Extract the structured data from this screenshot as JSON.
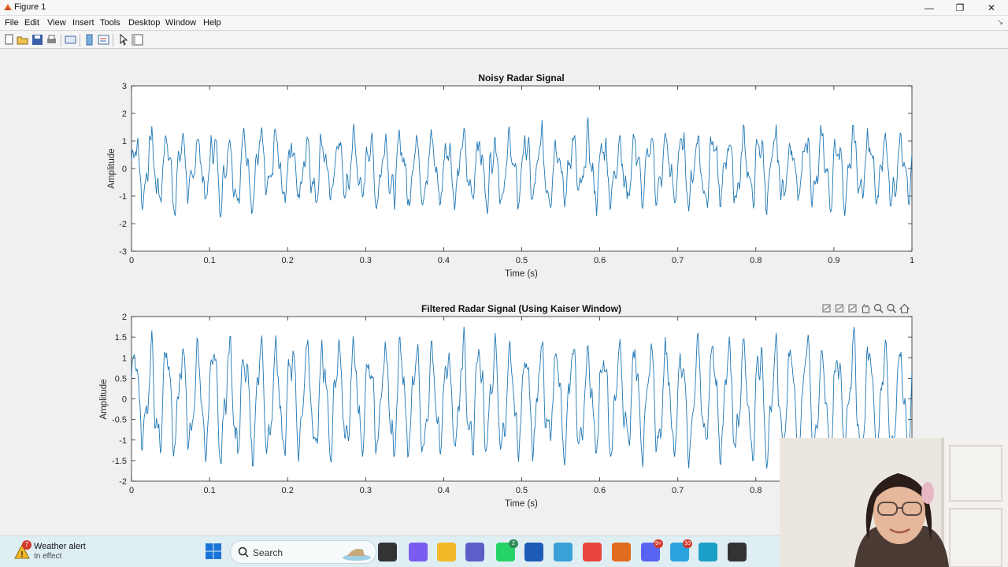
{
  "window": {
    "title": "Figure 1",
    "controls": {
      "minimize": "—",
      "restore": "❐",
      "close": "✕"
    }
  },
  "menubar": {
    "items": [
      "File",
      "Edit",
      "View",
      "Insert",
      "Tools",
      "Desktop",
      "Window",
      "Help"
    ]
  },
  "toolbar": {
    "buttons": [
      "new-figure-icon",
      "open-icon",
      "save-icon",
      "print-icon",
      "link-plot-icon",
      "colorbar-icon",
      "legend-icon",
      "pointer-icon",
      "property-inspector-icon"
    ]
  },
  "colors": {
    "signal": "#1f77b4",
    "axes_bg": "#ffffff",
    "figure_bg": "#f0f0f0",
    "taskbar": "#dfeef2"
  },
  "chart_data": [
    {
      "type": "line",
      "title": "Noisy Radar Signal",
      "xlabel": "Time (s)",
      "ylabel": "Amplitude",
      "xlim": [
        0,
        1
      ],
      "ylim": [
        -3,
        3
      ],
      "xticks": [
        "0",
        "0.1",
        "0.2",
        "0.3",
        "0.4",
        "0.5",
        "0.6",
        "0.7",
        "0.8",
        "0.9",
        "1"
      ],
      "yticks": [
        "3",
        "2",
        "1",
        "0",
        "-1",
        "-2",
        "-3"
      ],
      "signal": {
        "tone_hz": 50,
        "tone_amplitude": 1,
        "noise_amplitude": 0.6,
        "samples": 1000
      },
      "grid": false
    },
    {
      "type": "line",
      "title": "Filtered Radar Signal (Using Kaiser Window)",
      "xlabel": "Time (s)",
      "ylabel": "Amplitude",
      "xlim": [
        0,
        1
      ],
      "ylim": [
        -2,
        2
      ],
      "xticks": [
        "0",
        "0.1",
        "0.2",
        "0.3",
        "0.4",
        "0.5",
        "0.6",
        "0.7",
        "0.8"
      ],
      "yticks": [
        "2",
        "1.5",
        "1",
        "0.5",
        "0",
        "-0.5",
        "-1",
        "-1.5",
        "-2"
      ],
      "signal": {
        "tone_hz": 50,
        "tone_amplitude": 1.1,
        "noise_amplitude": 0.45,
        "samples": 1000
      },
      "grid": false
    }
  ],
  "axes_toolbar": [
    "brush-icon",
    "datatip-icon",
    "export-icon",
    "pan-icon",
    "zoom-in-icon",
    "zoom-out-icon",
    "home-icon"
  ],
  "taskbar": {
    "weather": {
      "badge": "7",
      "title": "Weather alert",
      "subtitle": "In effect"
    },
    "search_placeholder": "Search",
    "apps": [
      {
        "name": "file-explorer-folder-icon",
        "color": "#333333"
      },
      {
        "name": "copilot-icon",
        "color": "#7b5cf0"
      },
      {
        "name": "folder-icon",
        "color": "#f2b827"
      },
      {
        "name": "teams-icon",
        "color": "#5b5fc7"
      },
      {
        "name": "whatsapp-icon",
        "color": "#25d366",
        "badge": "2"
      },
      {
        "name": "word-icon",
        "color": "#1f5bb8"
      },
      {
        "name": "notepad-icon",
        "color": "#3aa0d8"
      },
      {
        "name": "chrome-icon",
        "color": "#e8453c"
      },
      {
        "name": "matlab-icon",
        "color": "#e26b1e"
      },
      {
        "name": "discord-icon",
        "color": "#5865f2",
        "badge": "9+"
      },
      {
        "name": "telegram-icon",
        "color": "#2aa3df",
        "badge": "10"
      },
      {
        "name": "edge-icon",
        "color": "#1aa0c8"
      },
      {
        "name": "obs-icon",
        "color": "#333333"
      }
    ]
  }
}
